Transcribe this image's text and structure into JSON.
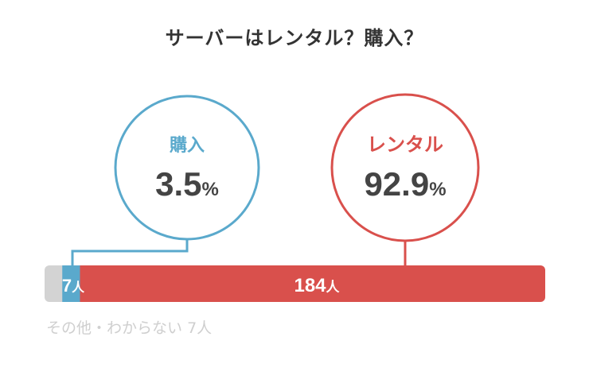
{
  "title": "サーバーはレンタル？購入？",
  "colors": {
    "purchase": "#5aa9cc",
    "rental": "#d9504c",
    "other": "#d3d3d3",
    "value_text": "#444444",
    "caption": "#cfcfcf"
  },
  "chart_data": {
    "type": "bar",
    "orientation": "horizontal-stacked",
    "unit": "人",
    "segments": [
      {
        "name": "その他・わからない",
        "count": 7
      },
      {
        "name": "購入",
        "count": 7
      },
      {
        "name": "レンタル",
        "count": 184
      }
    ],
    "bubbles": [
      {
        "label": "購入",
        "percent": "3.5",
        "percent_sign": "%"
      },
      {
        "label": "レンタル",
        "percent": "92.9",
        "percent_sign": "%"
      }
    ],
    "bar_labels": {
      "purchase": "7",
      "rental": "184",
      "unit": "人"
    },
    "caption": "その他・わからない",
    "caption_count": "7人"
  }
}
